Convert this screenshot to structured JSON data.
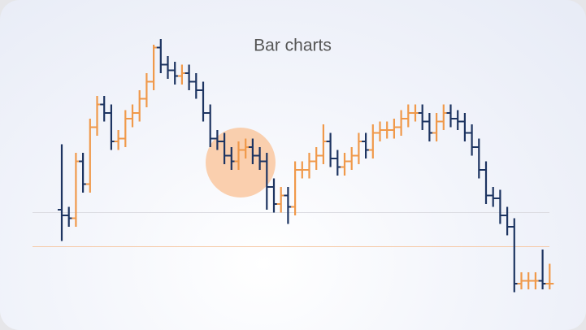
{
  "chart_data": {
    "type": "ohlc",
    "title": "Bar charts",
    "ylim": [
      0,
      100
    ],
    "up_color": "#f0994a",
    "down_color": "#1d3461",
    "open": [
      32,
      30,
      29,
      49,
      41,
      61,
      69,
      66,
      56,
      57,
      64,
      66,
      71,
      77,
      89,
      83,
      81,
      79,
      80,
      77,
      74,
      66,
      57,
      56,
      51,
      49,
      53,
      54,
      51,
      49,
      40,
      34,
      37,
      33,
      46,
      46,
      49,
      51,
      56,
      50,
      47,
      49,
      51,
      56,
      53,
      59,
      60,
      60,
      61,
      64,
      66,
      66,
      63,
      59,
      63,
      66,
      64,
      63,
      59,
      54,
      46,
      37,
      36,
      30,
      26,
      6,
      7,
      7,
      7,
      6
    ],
    "high": [
      55,
      33,
      52,
      52,
      64,
      72,
      72,
      69,
      60,
      67,
      69,
      74,
      80,
      90,
      92,
      86,
      84,
      83,
      83,
      80,
      77,
      69,
      60,
      59,
      54,
      56,
      57,
      57,
      54,
      52,
      43,
      40,
      40,
      49,
      49,
      52,
      54,
      62,
      59,
      53,
      52,
      54,
      59,
      59,
      62,
      63,
      63,
      64,
      67,
      69,
      69,
      69,
      66,
      66,
      69,
      69,
      67,
      66,
      62,
      57,
      49,
      40,
      39,
      33,
      29,
      10,
      10,
      10,
      18,
      13
    ],
    "low": [
      21,
      26,
      26,
      38,
      38,
      58,
      63,
      53,
      53,
      54,
      61,
      63,
      68,
      74,
      80,
      78,
      76,
      76,
      74,
      71,
      63,
      54,
      53,
      48,
      46,
      46,
      50,
      48,
      46,
      32,
      31,
      31,
      27,
      30,
      43,
      43,
      46,
      48,
      47,
      44,
      44,
      46,
      48,
      50,
      50,
      56,
      57,
      57,
      58,
      61,
      63,
      60,
      56,
      56,
      60,
      61,
      60,
      56,
      51,
      43,
      34,
      33,
      27,
      23,
      3,
      4,
      4,
      4,
      4,
      4
    ],
    "close": [
      30,
      29,
      49,
      41,
      61,
      69,
      66,
      56,
      57,
      64,
      66,
      71,
      77,
      89,
      83,
      81,
      79,
      80,
      77,
      74,
      66,
      57,
      56,
      51,
      49,
      53,
      54,
      51,
      49,
      40,
      34,
      37,
      33,
      46,
      46,
      49,
      51,
      56,
      50,
      47,
      49,
      51,
      56,
      53,
      59,
      60,
      60,
      61,
      64,
      66,
      66,
      63,
      59,
      63,
      66,
      64,
      63,
      59,
      54,
      46,
      37,
      36,
      30,
      26,
      6,
      7,
      7,
      7,
      6,
      6
    ],
    "reference_lines": [
      {
        "value": 31,
        "color": "#dcdce2"
      },
      {
        "value": 19,
        "color": "#f6c9a6"
      }
    ]
  }
}
